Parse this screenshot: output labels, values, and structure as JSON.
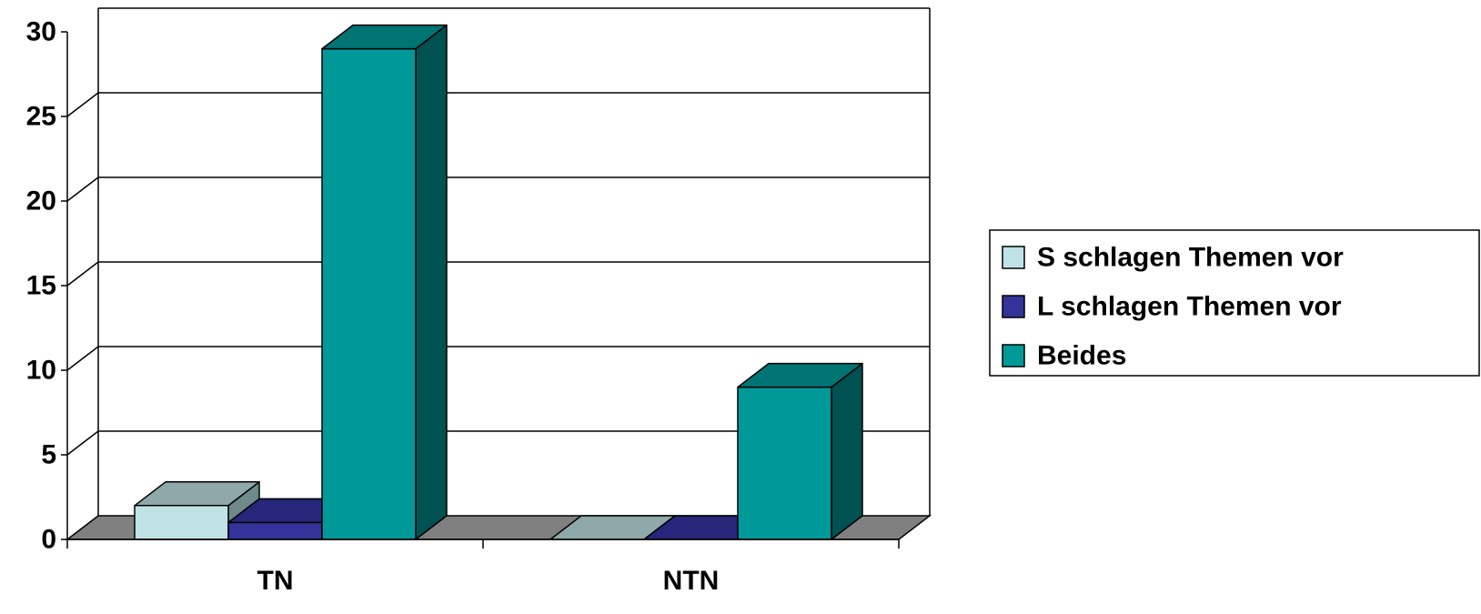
{
  "chart_data": {
    "type": "bar",
    "style": "3d-clustered-column",
    "categories": [
      "TN",
      "NTN"
    ],
    "series": [
      {
        "name": "S schlagen Themen vor",
        "values": [
          2,
          0
        ],
        "color": "#BFE3E4",
        "top_color": "#8FA8A9",
        "side_color": "#6E8A8B"
      },
      {
        "name": "L schlagen Themen vor",
        "values": [
          1,
          0
        ],
        "color": "#33339A",
        "top_color": "#26267A",
        "side_color": "#1F1F5E"
      },
      {
        "name": "Beides",
        "values": [
          29,
          9
        ],
        "color": "#009999",
        "top_color": "#007373",
        "side_color": "#005151"
      }
    ],
    "ylim": [
      0,
      30
    ],
    "yticks": [
      "0",
      "5",
      "10",
      "15",
      "20",
      "25",
      "30"
    ],
    "grid": true,
    "floor_color": "#808080",
    "legend": {
      "position": "right",
      "entries": [
        "S schlagen Themen vor",
        "L schlagen Themen vor",
        "Beides"
      ]
    }
  }
}
